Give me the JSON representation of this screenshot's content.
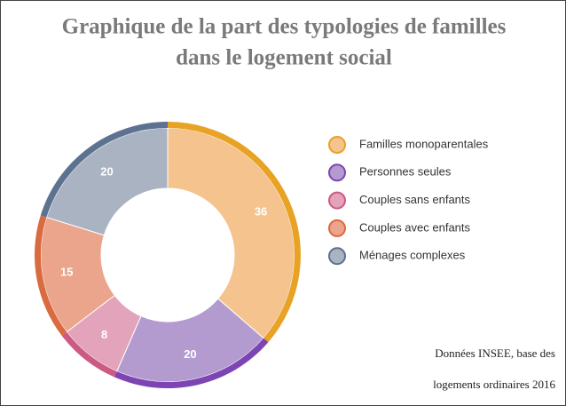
{
  "chart_data": {
    "type": "donut",
    "title": [
      "Graphique de la part des typologies de familles",
      "dans le logement social"
    ],
    "categories": [
      "Familles monoparentales",
      "Personnes seules",
      "Couples sans enfants",
      "Couples avec enfants",
      "Ménages complexes"
    ],
    "values": [
      36,
      20,
      8,
      15,
      20
    ],
    "colors": [
      "#f4c38e",
      "#b39bd0",
      "#e3a3ba",
      "#eba58c",
      "#a9b3c2"
    ],
    "edge_colors": [
      "#e8a224",
      "#7d44b3",
      "#cc5a83",
      "#da6a40",
      "#5d7190"
    ],
    "legend": "right",
    "note": [
      "Données INSEE, base des",
      "logements ordinaires 2016"
    ]
  }
}
